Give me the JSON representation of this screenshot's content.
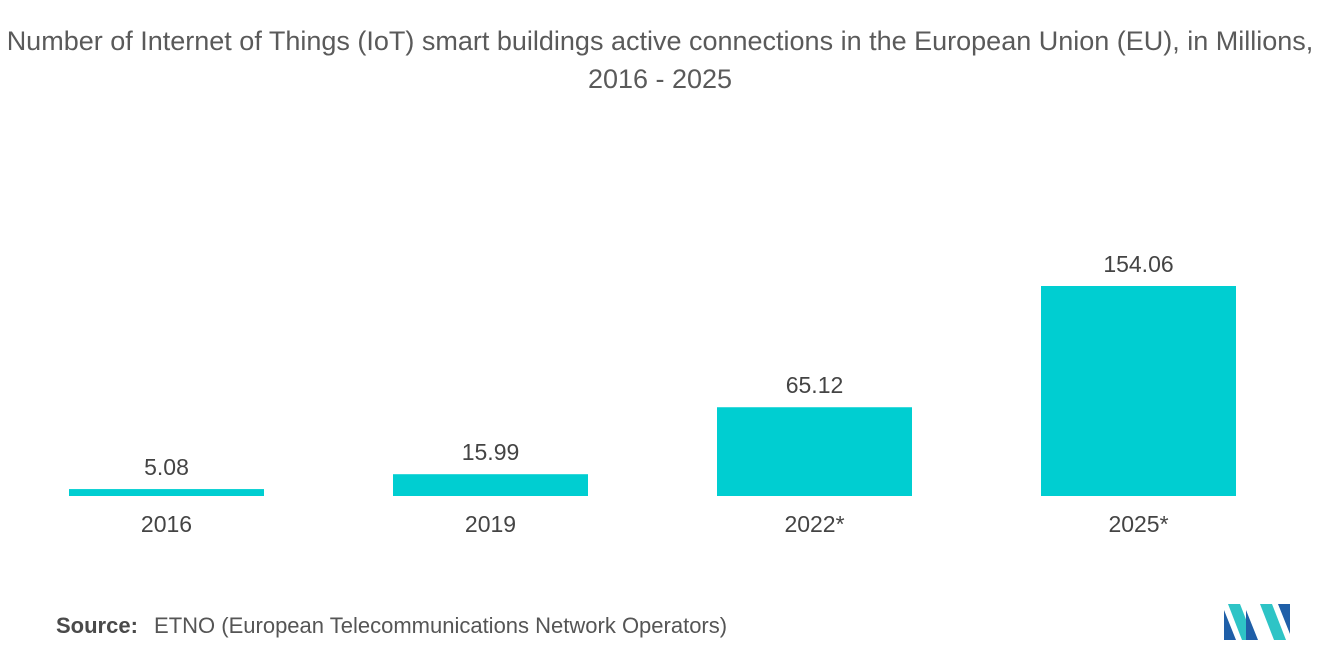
{
  "chart_data": {
    "type": "bar",
    "title": "Number of Internet of Things (IoT) smart buildings active connections in the European Union (EU), in Millions, 2016 - 2025",
    "categories": [
      "2016",
      "2019",
      "2022*",
      "2025*"
    ],
    "values": [
      5.08,
      15.99,
      65.12,
      154.06
    ],
    "value_labels": [
      "5.08",
      "15.99",
      "65.12",
      "154.06"
    ],
    "xlabel": "",
    "ylabel": "",
    "ylim": [
      0,
      154.06
    ],
    "grid": false,
    "legend": "none",
    "bar_color": "#00CED1"
  },
  "source": {
    "label": "Source:",
    "text": "ETNO (European Telecommunications Network Operators)"
  },
  "logo": {
    "icon": "mordor-intelligence-logo-icon",
    "colors": [
      "#1f5fa8",
      "#2ec4c6"
    ]
  }
}
